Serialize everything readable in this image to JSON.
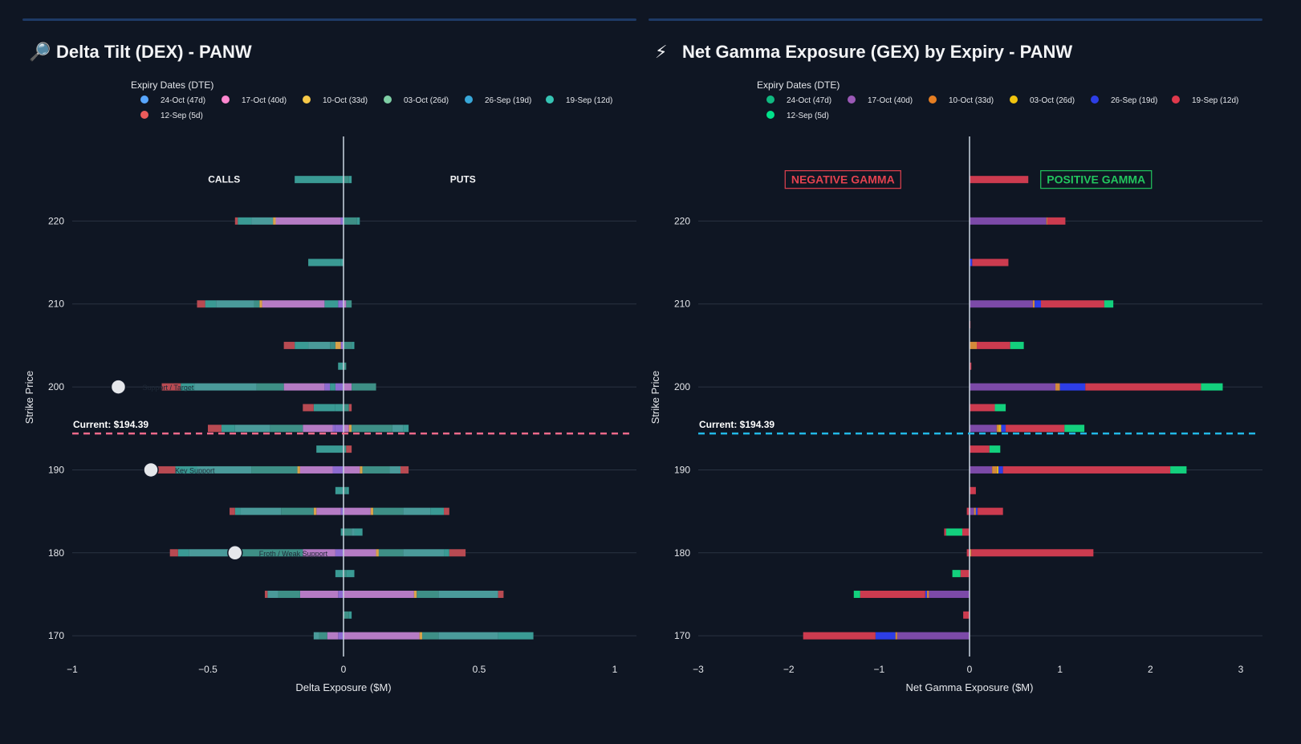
{
  "colors": {
    "background": "#0f1623",
    "grid": "#2a3342",
    "axis": "#cbd5e1",
    "dex_current_line": "#f06a8a",
    "gex_current_line": "#22b8e6",
    "negative_gamma": "#e3424f",
    "positive_gamma": "#22c55e"
  },
  "panels": {
    "dex": {
      "icon": "magnifier-icon",
      "icon_glyph": "🔎",
      "title": "Delta Tilt (DEX) - PANW"
    },
    "gex": {
      "icon": "lightning-icon",
      "icon_glyph": "⚡",
      "title": "Net Gamma Exposure (GEX) by Expiry - PANW"
    }
  },
  "chart_data": [
    {
      "type": "bar",
      "orientation": "horizontal",
      "barmode": "relative",
      "title": "Delta Tilt (DEX) - PANW",
      "xlabel": "Delta Exposure ($M)",
      "ylabel": "Strike Price",
      "xlim": [
        -1,
        1
      ],
      "ylim": [
        167.5,
        230
      ],
      "xticks": [
        -1,
        -0.5,
        0,
        0.5,
        1
      ],
      "xtick_labels": [
        "−1",
        "−0.5",
        "0",
        "0.5",
        "1"
      ],
      "yticks": [
        170,
        180,
        190,
        200,
        210,
        220
      ],
      "legend_title": "Expiry Dates (DTE)",
      "legend_position": "top",
      "current_price": 194.39,
      "current_label": "Current: $194.39",
      "side_labels": {
        "left": "CALLS",
        "right": "PUTS",
        "y": 225
      },
      "strikes": [
        170,
        172.5,
        175,
        177.5,
        180,
        182.5,
        185,
        187.5,
        190,
        192.5,
        195,
        197.5,
        200,
        202.5,
        205,
        207.5,
        210,
        215,
        220,
        225
      ],
      "series": [
        {
          "name": "24-Oct (47d)",
          "legend_color": "#58a6ff",
          "color": "#8d6bd0",
          "values": [
            -0.02,
            0,
            -0.02,
            0,
            -0.03,
            0,
            -0.01,
            0,
            -0.04,
            0,
            -0.03,
            0,
            -0.03,
            0,
            -0.01,
            0,
            -0.02,
            0,
            -0.01,
            0
          ]
        },
        {
          "name": "17-Oct (40d)",
          "legend_color": "#ff87d0",
          "color": "#b57bc4",
          "values": [
            0.28,
            0,
            0.26,
            0,
            0.12,
            0,
            0.1,
            0,
            0.06,
            0,
            0.02,
            0,
            0.03,
            0,
            0,
            0,
            0.01,
            0,
            0,
            0
          ]
        },
        {
          "name": "10-Oct (33d)",
          "legend_color": "#f7c948",
          "color": "#d9a24a",
          "values": [
            0.01,
            0,
            0.01,
            0,
            0.01,
            0,
            0.01,
            0,
            0.01,
            0,
            0.01,
            0,
            0,
            0,
            0,
            0,
            0,
            0,
            0,
            0
          ]
        },
        {
          "name": "03-Oct (26d)",
          "legend_color": "#7fcfa5",
          "color": "#3e8f86",
          "values": [
            0.06,
            0.02,
            0.08,
            0.01,
            0.09,
            0.03,
            0.11,
            0.01,
            0.1,
            0.01,
            0.15,
            0.02,
            0.09,
            0.01,
            0.03,
            0,
            0.02,
            0,
            0.05,
            0.02
          ]
        },
        {
          "name": "26-Sep (19d)",
          "legend_color": "#38a7d8",
          "color": "#4a9a9a",
          "values": [
            0.22,
            0,
            0.22,
            0,
            0.15,
            0.01,
            0.1,
            0,
            0.04,
            0,
            0.04,
            0,
            0,
            0,
            0,
            0,
            0,
            0,
            0,
            0
          ]
        },
        {
          "name": "19-Sep (12d)",
          "legend_color": "#36c4b4",
          "color": "#3a9a94",
          "values": [
            0.13,
            0.01,
            0.0,
            0.03,
            0.02,
            0.03,
            0.05,
            0.01,
            0.0,
            0.0,
            0.02,
            -0.03,
            -0.02,
            -0.02,
            0.01,
            0,
            -0.05,
            -0.01,
            0.01,
            0.01
          ]
        },
        {
          "name": "12-Sep (5d)",
          "legend_color": "#ec5b5b",
          "color": "#b84a52",
          "values": [
            0,
            0,
            0.02,
            0,
            0.06,
            0,
            0.02,
            0,
            0.03,
            0.02,
            0,
            0.01,
            0,
            0,
            0,
            0,
            0,
            0,
            0,
            0
          ]
        }
      ],
      "neg_series": [
        {
          "name": "24-Oct (47d)",
          "color": "#8d6bd0",
          "values": [
            0,
            0,
            0,
            0,
            0,
            0,
            0,
            0,
            0,
            0,
            -0.01,
            0,
            -0.02,
            0,
            0,
            0,
            0,
            0,
            0,
            0
          ]
        },
        {
          "name": "17-Oct (40d)",
          "color": "#b57bc4",
          "values": [
            -0.04,
            0,
            -0.14,
            0,
            -0.12,
            0,
            -0.09,
            0,
            -0.12,
            0,
            -0.11,
            0,
            -0.15,
            0,
            0,
            0,
            -0.23,
            0,
            -0.24,
            0
          ]
        },
        {
          "name": "10-Oct (33d)",
          "color": "#d9a24a",
          "values": [
            0,
            0,
            0,
            0,
            0,
            0,
            -0.01,
            0,
            -0.01,
            0,
            0,
            0,
            0,
            0,
            -0.02,
            0,
            -0.01,
            0,
            -0.01,
            0
          ]
        },
        {
          "name": "03-Oct (26d)",
          "color": "#3e8f86",
          "values": [
            -0.03,
            0,
            -0.08,
            0,
            -0.24,
            0,
            -0.12,
            0,
            -0.17,
            0,
            -0.12,
            0,
            -0.1,
            0,
            -0.02,
            0,
            -0.02,
            0,
            0,
            0
          ]
        },
        {
          "name": "26-Sep (19d)",
          "color": "#4a9a9a",
          "values": [
            -0.02,
            0,
            -0.04,
            0,
            -0.18,
            0,
            -0.15,
            0,
            -0.2,
            0,
            -0.13,
            0,
            -0.23,
            0,
            -0.08,
            0,
            -0.14,
            0,
            -0.08,
            0
          ]
        },
        {
          "name": "19-Sep (12d)",
          "color": "#3a9a94",
          "values": [
            0,
            0,
            0,
            -0.03,
            -0.04,
            -0.01,
            -0.02,
            -0.03,
            -0.08,
            -0.1,
            -0.05,
            -0.08,
            -0.05,
            0,
            -0.05,
            0,
            -0.04,
            -0.12,
            -0.05,
            -0.18
          ]
        },
        {
          "name": "12-Sep (5d)",
          "color": "#b84a52",
          "values": [
            0,
            0,
            -0.01,
            0,
            -0.03,
            0,
            -0.02,
            0,
            -0.08,
            0,
            -0.05,
            -0.04,
            -0.07,
            0,
            -0.04,
            0,
            -0.03,
            0,
            -0.01,
            0
          ]
        }
      ],
      "annotations": [
        {
          "strike": 200,
          "x": -0.83,
          "text": "Support / Target"
        },
        {
          "strike": 190,
          "x": -0.71,
          "text": "Key Support"
        },
        {
          "strike": 180,
          "x": -0.4,
          "text": "Froth / Weak Support"
        }
      ]
    },
    {
      "type": "bar",
      "orientation": "horizontal",
      "barmode": "relative",
      "title": "Net Gamma Exposure (GEX) by Expiry - PANW",
      "xlabel": "Net Gamma Exposure ($M)",
      "ylabel": "Strike Price",
      "xlim": [
        -3,
        3
      ],
      "ylim": [
        167.5,
        230
      ],
      "xticks": [
        -3,
        -2,
        -1,
        0,
        1,
        2,
        3
      ],
      "xtick_labels": [
        "−3",
        "−2",
        "−1",
        "0",
        "1",
        "2",
        "3"
      ],
      "yticks": [
        170,
        180,
        190,
        200,
        210,
        220
      ],
      "legend_title": "Expiry Dates (DTE)",
      "legend_position": "top",
      "current_price": 194.39,
      "current_label": "Current: $194.39",
      "zone_labels": {
        "negative": "NEGATIVE GAMMA",
        "positive": "POSITIVE GAMMA",
        "y": 225
      },
      "strikes": [
        170,
        172.5,
        175,
        177.5,
        180,
        182.5,
        185,
        187.5,
        190,
        192.5,
        195,
        197.5,
        200,
        202.5,
        205,
        207.5,
        210,
        215,
        220,
        225
      ],
      "series": [
        {
          "name": "24-Oct (47d)",
          "legend_color": "#10b981",
          "color": "#7c4aa8",
          "values": [
            -0.8,
            0,
            -0.45,
            0,
            0,
            0,
            0.05,
            0,
            0.25,
            0,
            0.3,
            0,
            0.95,
            0,
            0,
            0,
            0.7,
            0,
            0.85,
            0
          ]
        },
        {
          "name": "17-Oct (40d)",
          "legend_color": "#9b59b6",
          "color": "#7c4aa8",
          "values": [
            0,
            0,
            0,
            0,
            0,
            0,
            0,
            0,
            0,
            0,
            0,
            0,
            0,
            0,
            0,
            0,
            0,
            0,
            0,
            0
          ]
        },
        {
          "name": "10-Oct (33d)",
          "legend_color": "#e67e22",
          "color": "#d4893a",
          "values": [
            -0.02,
            0,
            -0.02,
            0,
            0.02,
            0,
            0.02,
            0,
            0.05,
            0,
            0.02,
            0,
            0.05,
            0,
            0.08,
            0,
            0.02,
            0,
            0.01,
            0
          ]
        },
        {
          "name": "03-Oct (26d)",
          "legend_color": "#f1c40f",
          "color": "#e6b422",
          "values": [
            0,
            0,
            0,
            0,
            0,
            0,
            0,
            0,
            0.02,
            0,
            0.03,
            0,
            0,
            0,
            0,
            0,
            0,
            0,
            0,
            0
          ]
        },
        {
          "name": "26-Sep (19d)",
          "legend_color": "#2d3ee6",
          "color": "#2d3ee6",
          "values": [
            -0.22,
            0,
            -0.02,
            0,
            0,
            0,
            0.02,
            0,
            0.05,
            0,
            0.05,
            0,
            0.28,
            0,
            0,
            0,
            0.07,
            0.03,
            0,
            0
          ]
        },
        {
          "name": "19-Sep (12d)",
          "legend_color": "#e0394c",
          "color": "#cc3b4f",
          "values": [
            -0.8,
            -0.07,
            -0.72,
            -0.1,
            1.35,
            -0.08,
            0.28,
            0.07,
            1.85,
            0.22,
            0.65,
            0.28,
            1.28,
            0.02,
            0.37,
            0.01,
            0.7,
            0.4,
            0.2,
            0.65
          ]
        },
        {
          "name": "12-Sep (5d)",
          "legend_color": "#00e28a",
          "color": "#13d07d",
          "values": [
            0,
            0,
            -0.07,
            -0.09,
            0,
            -0.18,
            0,
            0,
            0.18,
            0.12,
            0.22,
            0.12,
            0.24,
            0,
            0.15,
            0,
            0.1,
            0,
            0,
            0
          ]
        }
      ],
      "neg_series": [
        {
          "name": "19-Sep (12d)",
          "color": "#cc3b4f",
          "values": [
            0,
            0,
            0,
            0,
            -0.03,
            -0.02,
            -0.03,
            0,
            0,
            0,
            0,
            0,
            0,
            0,
            0,
            0,
            0,
            0,
            0,
            0
          ]
        }
      ]
    }
  ]
}
